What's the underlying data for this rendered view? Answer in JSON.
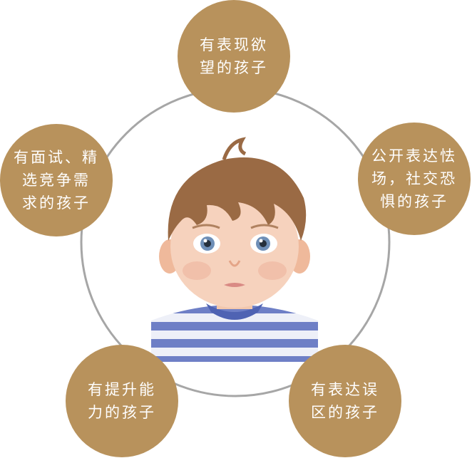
{
  "center": {
    "icon": "baby-portrait"
  },
  "colors": {
    "bubble": "#b8925c",
    "ring": "#a6a6a6",
    "text": "#ffffff"
  },
  "bubbles": {
    "top": {
      "lines": [
        "有表现欲",
        "望的孩子"
      ]
    },
    "right": {
      "lines": [
        "公开表达怯",
        "场，社交恐",
        "惧的孩子"
      ]
    },
    "bottom_right": {
      "lines": [
        "有表达误",
        "区的孩子"
      ]
    },
    "bottom_left": {
      "lines": [
        "有提升能",
        "力的孩子"
      ]
    },
    "left": {
      "lines": [
        "有面试、精",
        "选竞争需",
        "求的孩子"
      ]
    }
  }
}
